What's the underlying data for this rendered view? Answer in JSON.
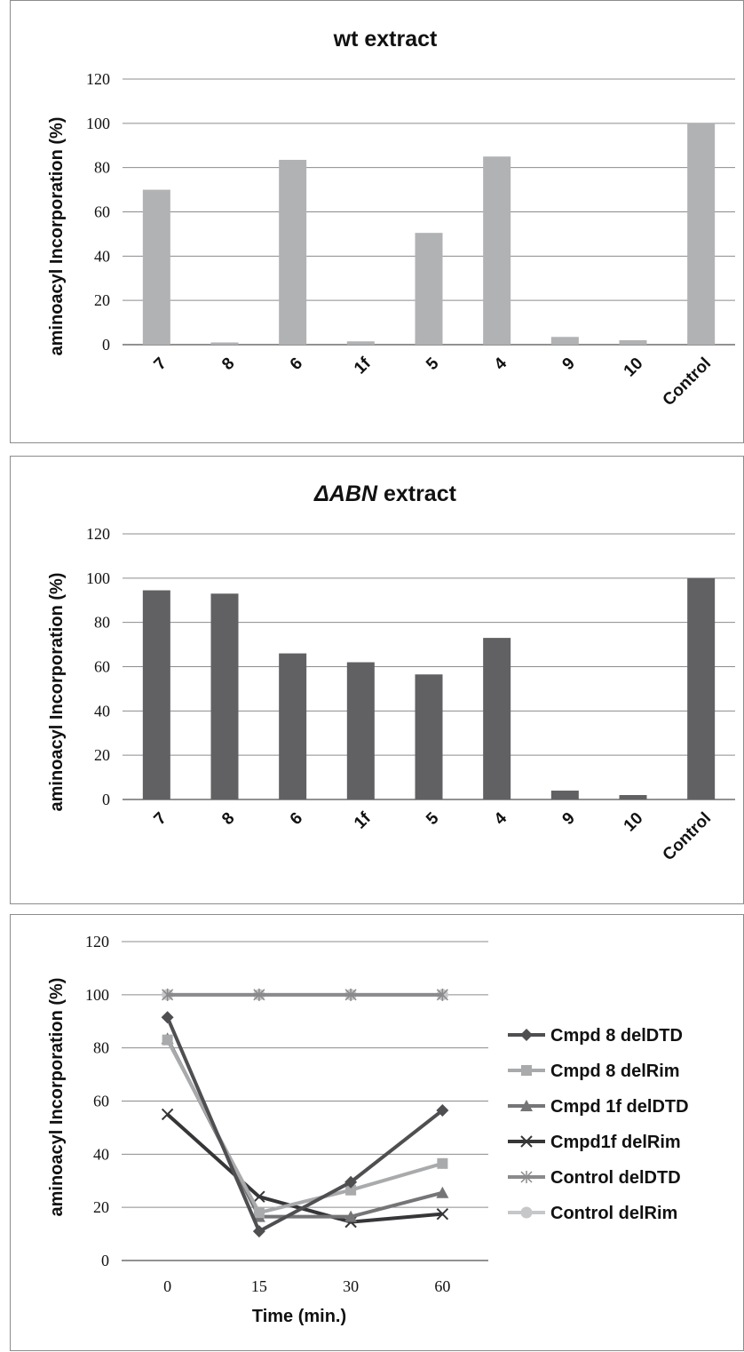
{
  "chart_data": [
    {
      "type": "bar",
      "title": "wt extract",
      "ylabel": "aminoacyl Incorporation (%)",
      "xlabel": "",
      "ylim": [
        0,
        120
      ],
      "yticks": [
        0,
        20,
        40,
        60,
        80,
        100,
        120
      ],
      "grid": true,
      "categories": [
        "7",
        "8",
        "6",
        "1f",
        "5",
        "4",
        "9",
        "10",
        "Control"
      ],
      "values": [
        70,
        1,
        83.5,
        1.5,
        50.5,
        85,
        3.5,
        2,
        100
      ],
      "color": "#b1b2b4"
    },
    {
      "type": "bar",
      "title_prefix": "ΔABN",
      "title_suffix": " extract",
      "ylabel": "aminoacyl Incorporation (%)",
      "xlabel": "",
      "ylim": [
        0,
        120
      ],
      "yticks": [
        0,
        20,
        40,
        60,
        80,
        100,
        120
      ],
      "grid": true,
      "categories": [
        "7",
        "8",
        "6",
        "1f",
        "5",
        "4",
        "9",
        "10",
        "Control"
      ],
      "values": [
        94.5,
        93,
        66,
        62,
        56.5,
        73,
        4,
        2,
        100
      ],
      "color": "#616164"
    },
    {
      "type": "line",
      "title": "",
      "ylabel": "aminoacyl Incorporation (%)",
      "xlabel": "Time (min.)",
      "ylim": [
        0,
        120
      ],
      "yticks": [
        0,
        20,
        40,
        60,
        80,
        100,
        120
      ],
      "grid": true,
      "legend_position": "right",
      "categories": [
        "0",
        "15",
        "30",
        "60"
      ],
      "series": [
        {
          "name": "Cmpd 8 delDTD",
          "values": [
            91.5,
            11,
            29.5,
            56.5
          ],
          "color": "#4f4f52",
          "marker": "diamond"
        },
        {
          "name": "Cmpd 8 delRim",
          "values": [
            83,
            18,
            26.5,
            36.5
          ],
          "color": "#a9aaac",
          "marker": "square"
        },
        {
          "name": "Cmpd 1f delDTD",
          "values": [
            83.5,
            16.5,
            16.5,
            25.5
          ],
          "color": "#757578",
          "marker": "triangle"
        },
        {
          "name": "Cmpd1f delRim",
          "values": [
            55,
            24,
            14.5,
            17.5
          ],
          "color": "#363638",
          "marker": "x"
        },
        {
          "name": "Control delDTD",
          "values": [
            100,
            100,
            100,
            100
          ],
          "color": "#8a8a8c",
          "marker": "asterisk"
        },
        {
          "name": "Control delRim",
          "values": [
            100,
            100,
            100,
            100
          ],
          "color": "#c6c7c9",
          "marker": "circle"
        }
      ]
    }
  ]
}
